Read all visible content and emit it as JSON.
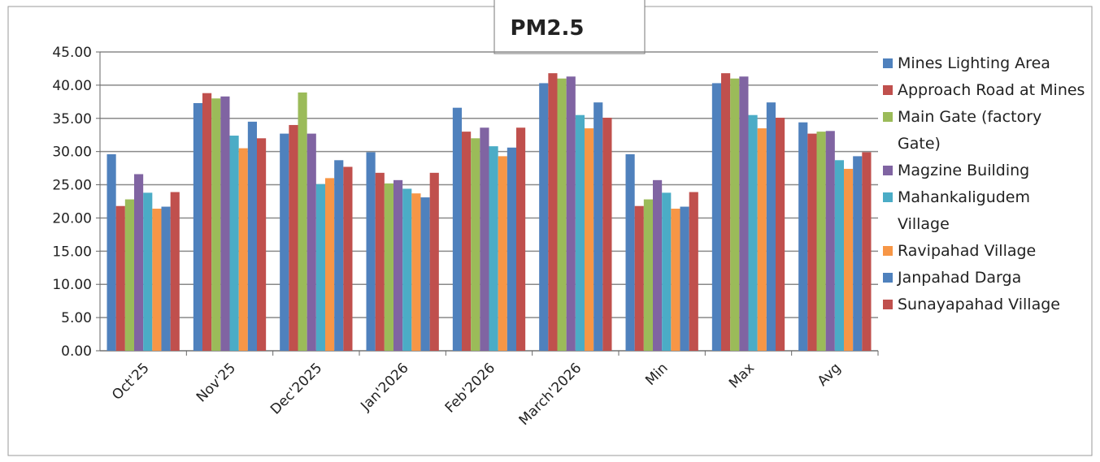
{
  "chart_data": {
    "type": "bar",
    "title": "PM2.5",
    "categories": [
      "Oct'25",
      "Nov'25",
      "Dec'2025",
      "Jan'2026",
      "Feb'2026",
      "March'2026",
      "Min",
      "Max",
      "Avg"
    ],
    "series": [
      {
        "name": "Mines Lighting Area",
        "color": "#4f81bd",
        "values": [
          29.6,
          37.3,
          32.7,
          29.9,
          36.6,
          40.3,
          29.6,
          40.3,
          34.4
        ]
      },
      {
        "name": "Approach Road at Mines",
        "color": "#c0504d",
        "values": [
          21.8,
          38.8,
          34.0,
          26.8,
          33.0,
          41.8,
          21.8,
          41.8,
          32.7
        ]
      },
      {
        "name": "Main Gate (factory Gate)",
        "color": "#9bbb59",
        "values": [
          22.8,
          38.0,
          38.9,
          25.2,
          32.0,
          41.0,
          22.8,
          41.0,
          33.0
        ]
      },
      {
        "name": "Magzine Building",
        "color": "#8064a2",
        "values": [
          26.6,
          38.3,
          32.7,
          25.7,
          33.6,
          41.3,
          25.7,
          41.3,
          33.1
        ]
      },
      {
        "name": "Mahankaligudem Village",
        "color": "#4bacc6",
        "values": [
          23.8,
          32.4,
          25.1,
          24.4,
          30.8,
          35.5,
          23.8,
          35.5,
          28.7
        ]
      },
      {
        "name": "Ravipahad Village",
        "color": "#f79646",
        "values": [
          21.4,
          30.5,
          26.0,
          23.7,
          29.3,
          33.5,
          21.4,
          33.5,
          27.4
        ]
      },
      {
        "name": "Janpahad Darga",
        "color": "#4f81bd",
        "values": [
          21.7,
          34.5,
          28.7,
          23.1,
          30.6,
          37.4,
          21.7,
          37.4,
          29.3
        ]
      },
      {
        "name": "Sunayapahad Village",
        "color": "#c0504d",
        "values": [
          23.9,
          32.0,
          27.7,
          26.8,
          33.6,
          35.1,
          23.9,
          35.1,
          29.9
        ]
      }
    ],
    "ylim": [
      0,
      45
    ],
    "yticks": [
      {
        "value": 0,
        "label": "0.00"
      },
      {
        "value": 5,
        "label": "5.00"
      },
      {
        "value": 10,
        "label": "10.00"
      },
      {
        "value": 15,
        "label": "15.00"
      },
      {
        "value": 20,
        "label": "20.00"
      },
      {
        "value": 25,
        "label": "25.00"
      },
      {
        "value": 30,
        "label": "30.00"
      },
      {
        "value": 35,
        "label": "35.00"
      },
      {
        "value": 40,
        "label": "40.00"
      },
      {
        "value": 45,
        "label": "45.00"
      }
    ],
    "grid": true,
    "legend": "right"
  }
}
